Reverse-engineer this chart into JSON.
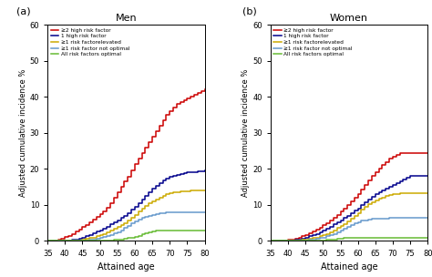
{
  "men": {
    "title": "Men",
    "label": "(a)",
    "ages": [
      35,
      36,
      37,
      38,
      39,
      40,
      41,
      42,
      43,
      44,
      45,
      46,
      47,
      48,
      49,
      50,
      51,
      52,
      53,
      54,
      55,
      56,
      57,
      58,
      59,
      60,
      61,
      62,
      63,
      64,
      65,
      66,
      67,
      68,
      69,
      70,
      71,
      72,
      73,
      74,
      75,
      76,
      77,
      78,
      79,
      80
    ],
    "ge2_high": [
      0,
      0,
      0.2,
      0.4,
      0.7,
      1.1,
      1.5,
      2.0,
      2.6,
      3.2,
      3.8,
      4.5,
      5.3,
      6.0,
      6.8,
      7.5,
      8.3,
      9.2,
      10.5,
      12.0,
      13.5,
      15.0,
      16.5,
      17.8,
      19.5,
      21.5,
      23.0,
      24.5,
      26.0,
      27.5,
      29.0,
      30.5,
      32.0,
      33.5,
      35.0,
      36.0,
      37.0,
      38.0,
      38.5,
      39.0,
      39.5,
      40.0,
      40.5,
      41.0,
      41.5,
      42.0
    ],
    "1_high": [
      0,
      0,
      0,
      0,
      0,
      0.1,
      0.2,
      0.3,
      0.5,
      0.7,
      1.0,
      1.3,
      1.7,
      2.1,
      2.6,
      3.0,
      3.5,
      4.0,
      4.6,
      5.2,
      5.8,
      6.4,
      7.0,
      7.8,
      8.6,
      9.5,
      10.5,
      11.5,
      12.5,
      13.5,
      14.5,
      15.2,
      16.0,
      16.7,
      17.3,
      17.8,
      18.1,
      18.4,
      18.6,
      18.8,
      19.0,
      19.1,
      19.2,
      19.3,
      19.4,
      19.5
    ],
    "ge1_elevated": [
      0,
      0,
      0,
      0,
      0,
      0,
      0,
      0,
      0.1,
      0.2,
      0.4,
      0.6,
      0.8,
      1.0,
      1.3,
      1.6,
      2.0,
      2.4,
      2.8,
      3.3,
      3.8,
      4.4,
      5.0,
      5.7,
      6.5,
      7.3,
      8.1,
      8.9,
      9.7,
      10.4,
      11.0,
      11.5,
      12.0,
      12.5,
      13.0,
      13.3,
      13.5,
      13.6,
      13.7,
      13.8,
      13.9,
      14.0,
      14.0,
      14.0,
      14.0,
      14.0
    ],
    "ge1_not_optimal": [
      0,
      0,
      0,
      0,
      0,
      0,
      0,
      0,
      0,
      0,
      0.1,
      0.2,
      0.3,
      0.5,
      0.7,
      0.9,
      1.1,
      1.4,
      1.7,
      2.1,
      2.5,
      3.0,
      3.6,
      4.2,
      4.9,
      5.5,
      6.0,
      6.4,
      6.7,
      7.0,
      7.2,
      7.4,
      7.6,
      7.8,
      7.9,
      8.0,
      8.0,
      8.0,
      8.0,
      8.0,
      8.0,
      8.0,
      8.0,
      8.0,
      8.0,
      8.0
    ],
    "all_optimal": [
      0,
      0,
      0,
      0,
      0,
      0,
      0,
      0,
      0,
      0,
      0,
      0,
      0,
      0,
      0,
      0,
      0.1,
      0.1,
      0.2,
      0.3,
      0.4,
      0.5,
      0.6,
      0.8,
      1.0,
      1.2,
      1.5,
      1.8,
      2.1,
      2.4,
      2.6,
      2.8,
      2.9,
      3.0,
      3.0,
      3.0,
      3.0,
      3.0,
      3.0,
      3.0,
      3.0,
      3.0,
      3.0,
      3.0,
      3.0,
      3.0
    ]
  },
  "women": {
    "title": "Women",
    "label": "(b)",
    "ages": [
      35,
      36,
      37,
      38,
      39,
      40,
      41,
      42,
      43,
      44,
      45,
      46,
      47,
      48,
      49,
      50,
      51,
      52,
      53,
      54,
      55,
      56,
      57,
      58,
      59,
      60,
      61,
      62,
      63,
      64,
      65,
      66,
      67,
      68,
      69,
      70,
      71,
      72,
      73,
      74,
      75,
      76,
      77,
      78,
      79,
      80
    ],
    "ge2_high": [
      0,
      0,
      0,
      0.1,
      0.2,
      0.3,
      0.5,
      0.7,
      1.0,
      1.3,
      1.7,
      2.1,
      2.6,
      3.1,
      3.7,
      4.3,
      5.0,
      5.7,
      6.5,
      7.3,
      8.2,
      9.1,
      10.0,
      11.0,
      12.0,
      13.0,
      14.2,
      15.5,
      16.8,
      18.0,
      19.0,
      20.0,
      21.0,
      22.0,
      22.8,
      23.5,
      24.0,
      24.3,
      24.5,
      24.5,
      24.5,
      24.5,
      24.5,
      24.5,
      24.5,
      24.5
    ],
    "1_high": [
      0,
      0,
      0,
      0,
      0,
      0.1,
      0.2,
      0.3,
      0.5,
      0.7,
      1.0,
      1.3,
      1.6,
      2.0,
      2.4,
      2.9,
      3.4,
      4.0,
      4.6,
      5.2,
      5.8,
      6.4,
      7.0,
      7.7,
      8.4,
      9.1,
      9.9,
      10.7,
      11.5,
      12.3,
      13.0,
      13.5,
      14.0,
      14.5,
      15.0,
      15.5,
      16.0,
      16.5,
      17.0,
      17.5,
      18.0,
      18.0,
      18.0,
      18.0,
      18.0,
      18.0
    ],
    "ge1_elevated": [
      0,
      0,
      0,
      0,
      0,
      0,
      0,
      0.1,
      0.2,
      0.3,
      0.4,
      0.6,
      0.8,
      1.0,
      1.3,
      1.6,
      2.0,
      2.5,
      3.0,
      3.6,
      4.2,
      4.8,
      5.5,
      6.2,
      7.0,
      7.8,
      8.6,
      9.4,
      10.2,
      10.8,
      11.3,
      11.7,
      12.1,
      12.5,
      12.8,
      13.0,
      13.1,
      13.2,
      13.3,
      13.3,
      13.3,
      13.3,
      13.3,
      13.3,
      13.3,
      13.3
    ],
    "ge1_not_optimal": [
      0,
      0,
      0,
      0,
      0,
      0,
      0,
      0,
      0,
      0.1,
      0.2,
      0.3,
      0.4,
      0.6,
      0.8,
      1.0,
      1.3,
      1.6,
      2.0,
      2.5,
      3.0,
      3.5,
      4.0,
      4.5,
      5.0,
      5.3,
      5.6,
      5.8,
      6.0,
      6.1,
      6.2,
      6.2,
      6.3,
      6.3,
      6.4,
      6.4,
      6.5,
      6.5,
      6.5,
      6.5,
      6.5,
      6.5,
      6.5,
      6.5,
      6.5,
      6.5
    ],
    "all_optimal": [
      0,
      0,
      0,
      0,
      0,
      0,
      0,
      0,
      0,
      0,
      0,
      0,
      0,
      0,
      0.1,
      0.2,
      0.3,
      0.4,
      0.5,
      0.6,
      0.7,
      0.8,
      0.9,
      0.9,
      0.9,
      0.9,
      0.9,
      0.9,
      0.9,
      0.9,
      0.9,
      0.9,
      0.9,
      0.9,
      0.9,
      0.9,
      0.9,
      0.9,
      0.9,
      0.9,
      0.9,
      0.9,
      0.9,
      0.9,
      0.9,
      0.9
    ]
  },
  "colors": {
    "ge2_high": "#cc0000",
    "1_high": "#00008b",
    "ge1_elevated": "#ccaa00",
    "ge1_not_optimal": "#6699cc",
    "all_optimal": "#66bb33"
  },
  "legend_labels": [
    "≥2 high risk factor",
    "1 high risk factor",
    "≥1 risk factorelevated",
    "≥1 risk factor not optimal",
    "All risk factors optimal"
  ],
  "ylabel": "Adjusted cumulative incidence %",
  "xlabel": "Attained age",
  "ylim": [
    0,
    60
  ],
  "xlim": [
    35,
    80
  ],
  "yticks": [
    0,
    10,
    20,
    30,
    40,
    50,
    60
  ],
  "xticks": [
    35,
    40,
    45,
    50,
    55,
    60,
    65,
    70,
    75,
    80
  ]
}
